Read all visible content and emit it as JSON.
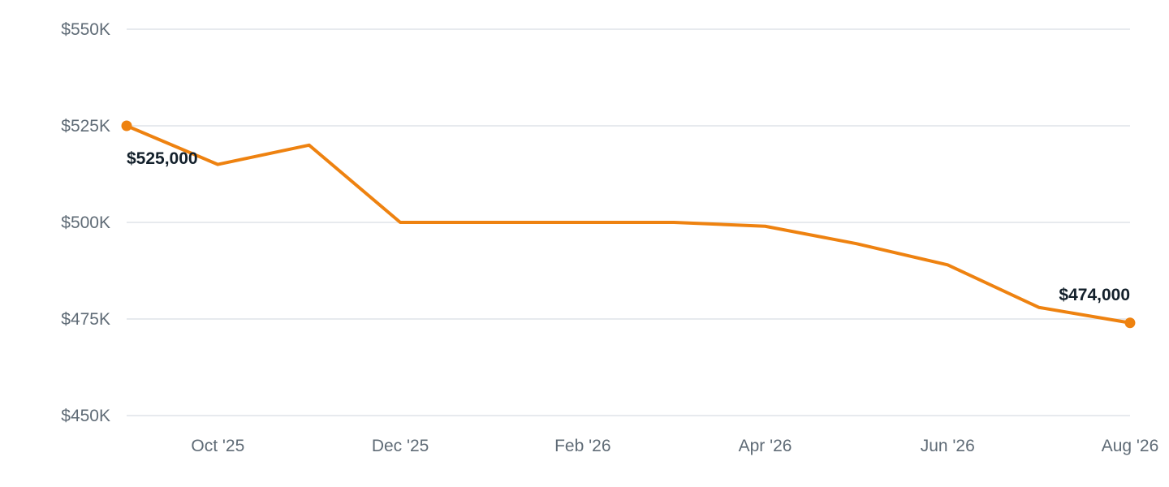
{
  "colors": {
    "series": "#ee8210",
    "grid": "#dfe3e8",
    "tick_text": "#5f6b76",
    "label_text": "#13202b",
    "background": "#ffffff"
  },
  "chart_data": {
    "type": "line",
    "title": "",
    "xlabel": "",
    "ylabel": "",
    "grid": true,
    "legend": "none",
    "xlim": [
      "2025-09",
      "2026-08"
    ],
    "ylim": [
      450000,
      550000
    ],
    "yticks": [
      550000,
      525000,
      500000,
      475000,
      450000
    ],
    "ytick_labels": [
      "$550K",
      "$525K",
      "$500K",
      "$475K",
      "$450K"
    ],
    "xticks": [
      "2025-10",
      "2025-12",
      "2026-02",
      "2026-04",
      "2026-06",
      "2026-08"
    ],
    "xtick_labels": [
      "Oct '25",
      "Dec '25",
      "Feb '26",
      "Apr '26",
      "Jun '26",
      "Aug '26"
    ],
    "series": [
      {
        "x": [
          "2025-09",
          "2025-10",
          "2025-11",
          "2025-12",
          "2026-01",
          "2026-02",
          "2026-03",
          "2026-04",
          "2026-05",
          "2026-06",
          "2026-07",
          "2026-08"
        ],
        "values": [
          525000,
          515000,
          520000,
          500000,
          500000,
          500000,
          500000,
          499000,
          494500,
          489000,
          478000,
          474000
        ]
      }
    ],
    "annotations": [
      {
        "x": "2025-09",
        "value": 525000,
        "text": "$525,000"
      },
      {
        "x": "2026-08",
        "value": 474000,
        "text": "$474,000"
      }
    ]
  }
}
